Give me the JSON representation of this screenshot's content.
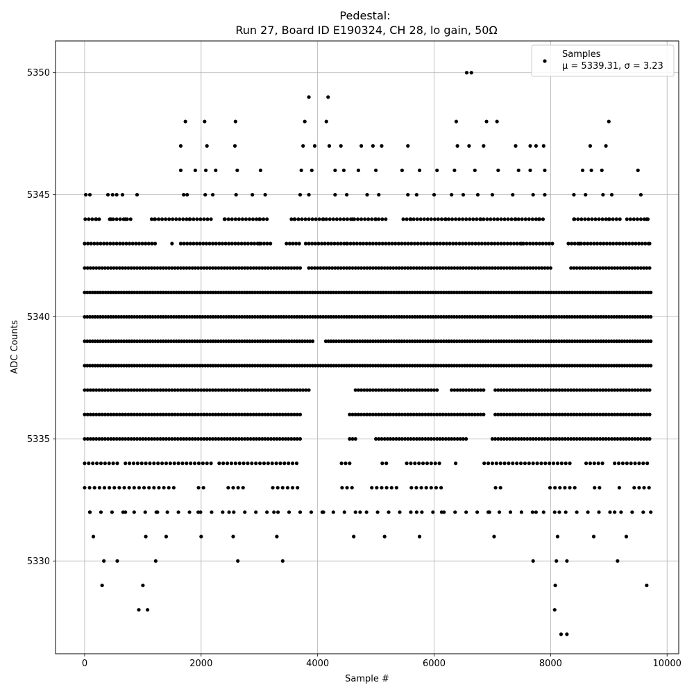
{
  "chart_data": {
    "type": "scatter",
    "title": "Pedestal:",
    "subtitle": "Run 27, Board ID E190324, CH 28, lo gain, 50Ω",
    "xlabel": "Sample #",
    "ylabel": "ADC Counts",
    "xlim": [
      -500,
      10200
    ],
    "ylim": [
      5326.2,
      5351.3
    ],
    "x_ticks": [
      "0",
      "2000",
      "4000",
      "6000",
      "8000",
      "10000"
    ],
    "y_ticks": [
      "5330",
      "5335",
      "5340",
      "5345",
      "5350"
    ],
    "x_tick_values": [
      0,
      2000,
      4000,
      6000,
      8000,
      10000
    ],
    "y_tick_values": [
      5330,
      5335,
      5340,
      5345,
      5350
    ],
    "grid": true,
    "legend_position": "top-right",
    "series": [
      {
        "name": "Samples",
        "stats_label": "μ = 5339.31, σ = 3.23",
        "color": "#000000",
        "marker": "circle",
        "n_samples": 9728,
        "mean": 5339.31,
        "std": 3.23,
        "points": [
          [
            20,
            5345
          ],
          [
            90,
            5345
          ],
          [
            400,
            5345
          ],
          [
            480,
            5345
          ],
          [
            550,
            5345
          ],
          [
            650,
            5345
          ],
          [
            900,
            5345
          ],
          [
            1700,
            5345
          ],
          [
            1760,
            5345
          ],
          [
            2070,
            5345
          ],
          [
            2200,
            5345
          ],
          [
            2600,
            5345
          ],
          [
            2880,
            5345
          ],
          [
            3100,
            5345
          ],
          [
            3700,
            5345
          ],
          [
            3850,
            5345
          ],
          [
            4300,
            5345
          ],
          [
            4500,
            5345
          ],
          [
            4850,
            5345
          ],
          [
            5050,
            5345
          ],
          [
            5550,
            5345
          ],
          [
            5700,
            5345
          ],
          [
            6000,
            5345
          ],
          [
            6300,
            5345
          ],
          [
            6500,
            5345
          ],
          [
            6750,
            5345
          ],
          [
            7000,
            5345
          ],
          [
            7350,
            5345
          ],
          [
            7700,
            5345
          ],
          [
            7900,
            5345
          ],
          [
            8400,
            5345
          ],
          [
            8600,
            5345
          ],
          [
            8900,
            5345
          ],
          [
            9050,
            5345
          ],
          [
            9550,
            5345
          ],
          [
            1650,
            5347
          ],
          [
            2100,
            5347
          ],
          [
            2580,
            5347
          ],
          [
            3750,
            5347
          ],
          [
            3950,
            5347
          ],
          [
            4200,
            5347
          ],
          [
            4400,
            5347
          ],
          [
            4750,
            5347
          ],
          [
            4950,
            5347
          ],
          [
            5100,
            5347
          ],
          [
            5550,
            5347
          ],
          [
            6400,
            5347
          ],
          [
            6600,
            5347
          ],
          [
            6850,
            5347
          ],
          [
            7400,
            5347
          ],
          [
            7650,
            5347
          ],
          [
            7750,
            5347
          ],
          [
            7880,
            5347
          ],
          [
            8680,
            5347
          ],
          [
            8950,
            5347
          ],
          [
            1730,
            5348
          ],
          [
            2060,
            5348
          ],
          [
            2590,
            5348
          ],
          [
            3780,
            5348
          ],
          [
            4150,
            5348
          ],
          [
            6380,
            5348
          ],
          [
            6900,
            5348
          ],
          [
            7080,
            5348
          ],
          [
            9000,
            5348
          ],
          [
            3850,
            5349
          ],
          [
            4180,
            5349
          ],
          [
            6560,
            5350
          ],
          [
            6640,
            5350
          ],
          [
            1650,
            5346
          ],
          [
            1900,
            5346
          ],
          [
            2080,
            5346
          ],
          [
            2250,
            5346
          ],
          [
            2620,
            5346
          ],
          [
            3020,
            5346
          ],
          [
            3720,
            5346
          ],
          [
            3900,
            5346
          ],
          [
            4300,
            5346
          ],
          [
            4450,
            5346
          ],
          [
            4700,
            5346
          ],
          [
            5000,
            5346
          ],
          [
            5450,
            5346
          ],
          [
            5750,
            5346
          ],
          [
            6050,
            5346
          ],
          [
            6350,
            5346
          ],
          [
            6700,
            5346
          ],
          [
            7100,
            5346
          ],
          [
            7450,
            5346
          ],
          [
            7650,
            5346
          ],
          [
            7900,
            5346
          ],
          [
            8550,
            5346
          ],
          [
            8700,
            5346
          ],
          [
            8880,
            5346
          ],
          [
            9500,
            5346
          ],
          [
            10,
            5344
          ],
          [
            200,
            5344
          ],
          [
            450,
            5344
          ],
          [
            700,
            5344
          ],
          [
            1200,
            5344
          ],
          [
            1800,
            5344
          ],
          [
            2400,
            5344
          ],
          [
            3000,
            5344
          ],
          [
            3600,
            5344
          ],
          [
            4100,
            5344
          ],
          [
            4600,
            5344
          ],
          [
            5000,
            5344
          ],
          [
            5600,
            5344
          ],
          [
            6200,
            5344
          ],
          [
            6800,
            5344
          ],
          [
            7400,
            5344
          ],
          [
            7800,
            5344
          ],
          [
            8400,
            5344
          ],
          [
            9000,
            5344
          ],
          [
            9650,
            5344
          ],
          [
            0,
            5343
          ],
          [
            1500,
            5343
          ],
          [
            3000,
            5343
          ],
          [
            4500,
            5343
          ],
          [
            6000,
            5343
          ],
          [
            7500,
            5343
          ],
          [
            8500,
            5343
          ],
          [
            9700,
            5343
          ],
          [
            300,
            5329
          ],
          [
            1000,
            5329
          ],
          [
            8080,
            5329
          ],
          [
            9650,
            5329
          ],
          [
            930,
            5328
          ],
          [
            1080,
            5328
          ],
          [
            8070,
            5328
          ],
          [
            8180,
            5327
          ],
          [
            8280,
            5327
          ],
          [
            330,
            5330
          ],
          [
            560,
            5330
          ],
          [
            1220,
            5330
          ],
          [
            2630,
            5330
          ],
          [
            3400,
            5330
          ],
          [
            7700,
            5330
          ],
          [
            8100,
            5330
          ],
          [
            8280,
            5330
          ],
          [
            9150,
            5330
          ],
          [
            150,
            5331
          ],
          [
            1050,
            5331
          ],
          [
            1400,
            5331
          ],
          [
            2000,
            5331
          ],
          [
            2550,
            5331
          ],
          [
            3300,
            5331
          ],
          [
            4620,
            5331
          ],
          [
            5150,
            5331
          ],
          [
            5750,
            5331
          ],
          [
            7030,
            5331
          ],
          [
            8120,
            5331
          ],
          [
            8740,
            5331
          ],
          [
            9300,
            5331
          ],
          [
            90,
            5332
          ],
          [
            700,
            5332
          ],
          [
            1250,
            5332
          ],
          [
            1950,
            5332
          ],
          [
            2480,
            5332
          ],
          [
            3250,
            5332
          ],
          [
            4100,
            5332
          ],
          [
            4730,
            5332
          ],
          [
            5700,
            5332
          ],
          [
            6130,
            5332
          ],
          [
            6950,
            5332
          ],
          [
            7750,
            5332
          ],
          [
            8150,
            5332
          ],
          [
            9100,
            5332
          ],
          [
            9720,
            5332
          ]
        ]
      }
    ]
  }
}
